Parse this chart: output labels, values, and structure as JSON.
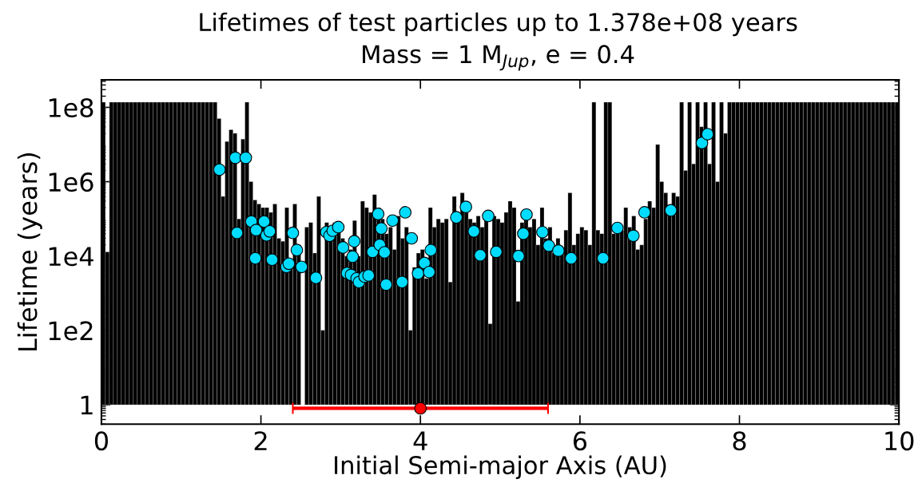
{
  "chart_data": {
    "type": "bar",
    "title": "Lifetimes of test particles up to 1.378e+08 years",
    "subtitle": "Mass = 1 M$_{Jup}$, e = 0.4",
    "xlabel": "Initial Semi-major Axis (AU)",
    "ylabel": "Lifetime (years)",
    "log": "y",
    "xlim": [
      0,
      10
    ],
    "xticks": [
      0,
      2,
      4,
      6,
      8,
      10
    ],
    "ylim": [
      0.3,
      550000000.0
    ],
    "yticks": [
      {
        "value": 1,
        "label": "1"
      },
      {
        "value": 100,
        "label": "1e2"
      },
      {
        "value": 10000,
        "label": "1e4"
      },
      {
        "value": 1000000,
        "label": "1e6"
      },
      {
        "value": 100000000,
        "label": "1e8"
      }
    ],
    "marker": "circle",
    "series": [
      {
        "color": "#000000",
        "base": [
          1,
          1,
          1,
          1,
          1,
          1,
          1,
          1,
          1,
          1,
          1,
          1,
          1,
          1,
          1,
          1,
          1,
          1,
          1,
          1,
          1,
          1,
          1,
          1,
          1,
          1,
          1,
          1,
          1,
          1,
          1,
          1,
          1,
          1,
          1,
          1,
          1,
          1,
          1,
          1,
          1,
          1,
          1,
          1,
          1,
          1,
          1,
          1,
          1,
          1,
          null,
          1,
          1,
          1,
          1,
          1,
          1,
          1,
          1,
          1,
          1,
          1,
          1,
          1,
          1,
          1,
          1,
          1,
          1,
          1,
          1,
          1,
          1,
          1,
          1,
          1,
          1,
          1,
          1,
          1,
          1,
          1,
          1,
          1,
          1,
          1,
          1,
          1,
          1,
          1,
          1,
          1,
          1,
          1,
          1,
          1,
          1,
          1,
          1,
          1,
          1,
          1,
          1,
          1,
          1,
          1,
          1,
          1,
          1,
          1,
          1,
          1,
          1,
          1,
          1,
          1,
          1,
          1,
          1,
          1,
          1,
          1,
          1,
          1,
          1,
          1,
          1,
          1,
          1,
          1,
          1,
          1,
          1,
          1,
          1,
          1,
          1,
          1,
          1,
          1,
          1,
          1,
          1,
          1,
          1,
          1,
          1,
          1,
          1,
          1,
          1,
          1,
          1,
          1,
          1,
          1,
          1,
          1,
          1,
          1,
          1,
          1,
          1,
          1,
          1,
          1,
          1,
          1,
          1,
          1,
          1,
          1,
          1,
          1,
          1,
          1,
          1,
          1,
          1,
          1,
          1,
          1,
          1,
          1,
          1,
          1,
          1,
          1,
          1,
          1,
          1,
          1,
          1,
          1,
          1,
          1,
          1,
          1,
          1,
          1
        ],
        "x": [
          0.025,
          0.075,
          0.125,
          0.175,
          0.225,
          0.275,
          0.325,
          0.375,
          0.425,
          0.475,
          0.525,
          0.575,
          0.625,
          0.675,
          0.725,
          0.775,
          0.825,
          0.875,
          0.925,
          0.975,
          1.025,
          1.075,
          1.125,
          1.175,
          1.225,
          1.275,
          1.325,
          1.375,
          1.425,
          1.475,
          1.525,
          1.575,
          1.625,
          1.675,
          1.725,
          1.775,
          1.825,
          1.875,
          1.925,
          1.975,
          2.025,
          2.075,
          2.125,
          2.175,
          2.225,
          2.275,
          2.325,
          2.375,
          2.425,
          2.475,
          2.525,
          2.575,
          2.625,
          2.675,
          2.725,
          2.775,
          2.825,
          2.875,
          2.925,
          2.975,
          3.025,
          3.075,
          3.125,
          3.175,
          3.225,
          3.275,
          3.325,
          3.375,
          3.425,
          3.475,
          3.525,
          3.575,
          3.625,
          3.675,
          3.725,
          3.775,
          3.825,
          3.875,
          3.925,
          3.975,
          4.025,
          4.075,
          4.125,
          4.175,
          4.225,
          4.275,
          4.325,
          4.375,
          4.425,
          4.475,
          4.525,
          4.575,
          4.625,
          4.675,
          4.725,
          4.775,
          4.825,
          4.875,
          4.925,
          4.975,
          5.025,
          5.075,
          5.125,
          5.175,
          5.225,
          5.275,
          5.325,
          5.375,
          5.425,
          5.475,
          5.525,
          5.575,
          5.625,
          5.675,
          5.725,
          5.775,
          5.825,
          5.875,
          5.925,
          5.975,
          6.025,
          6.075,
          6.125,
          6.175,
          6.225,
          6.275,
          6.325,
          6.375,
          6.425,
          6.475,
          6.525,
          6.575,
          6.625,
          6.675,
          6.725,
          6.775,
          6.825,
          6.875,
          6.925,
          6.975,
          7.025,
          7.075,
          7.125,
          7.175,
          7.225,
          7.275,
          7.325,
          7.375,
          7.425,
          7.475,
          7.525,
          7.575,
          7.625,
          7.675,
          7.725,
          7.775,
          7.825,
          7.875,
          7.925,
          7.975,
          8.025,
          8.075,
          8.125,
          8.175,
          8.225,
          8.275,
          8.325,
          8.375,
          8.425,
          8.475,
          8.525,
          8.575,
          8.625,
          8.675,
          8.725,
          8.775,
          8.825,
          8.875,
          8.925,
          8.975,
          9.025,
          9.075,
          9.125,
          9.175,
          9.225,
          9.275,
          9.325,
          9.375,
          9.425,
          9.475,
          9.525,
          9.575,
          9.625,
          9.675,
          9.725,
          9.775,
          9.825,
          9.875,
          9.925,
          9.975
        ],
        "values": [
          137800000.0,
          13000.0,
          137800000.0,
          137800000.0,
          137800000.0,
          137800000.0,
          137800000.0,
          137800000.0,
          137800000.0,
          137800000.0,
          137800000.0,
          137800000.0,
          137800000.0,
          137800000.0,
          137800000.0,
          137800000.0,
          137800000.0,
          137800000.0,
          137800000.0,
          137800000.0,
          137800000.0,
          137800000.0,
          137800000.0,
          137800000.0,
          137800000.0,
          137800000.0,
          137800000.0,
          137800000.0,
          137800000.0,
          50000000.0,
          400000.0,
          12000000.0,
          25000000.0,
          20000000.0,
          100000.0,
          14000000.0,
          137800000.0,
          1000000.0,
          320000.0,
          250000.0,
          200000.0,
          200000.0,
          150000.0,
          250000.0,
          30000.0,
          25000.0,
          200000.0,
          5000.0,
          250000.0,
          20000.0,
          null,
          60000.0,
          80000.0,
          12000.0,
          400000.0,
          100,
          80000.0,
          30000.0,
          80000.0,
          50000.0,
          30000.0,
          10000.0,
          15000.0,
          90000.0,
          10000.0,
          300000.0,
          200000.0,
          150000.0,
          450000.0,
          200000.0,
          100000.0,
          40000.0,
          60000.0,
          15000.0,
          120000.0,
          30000.0,
          60000.0,
          100,
          5000.0,
          12000.0,
          15000.0,
          2500.0,
          200000.0,
          60000.0,
          100000.0,
          80000.0,
          100000.0,
          2000.0,
          400000.0,
          100000.0,
          500000.0,
          150000.0,
          100000.0,
          80000.0,
          120000.0,
          60000.0,
          100000.0,
          150,
          120000.0,
          100000.0,
          80000.0,
          150000.0,
          300000.0,
          200000.0,
          600,
          80000.0,
          100000.0,
          60000.0,
          100000.0,
          20000.0,
          200000.0,
          30000.0,
          60000.0,
          12000.0,
          30000.0,
          15000.0,
          50000.0,
          500000.0,
          20000.0,
          40000.0,
          60000.0,
          50000.0,
          20000.0,
          137800000.0,
          50000.0,
          40000.0,
          137800000.0,
          137800000.0,
          40000.0,
          80000.0,
          50000.0,
          200000.0,
          60000.0,
          120000.0,
          15000.0,
          20000.0,
          100000.0,
          300000.0,
          200000.0,
          10000000.0,
          1000000.0,
          500000.0,
          150000.0,
          500000.0,
          400000.0,
          137800000.0,
          2000000.0,
          137800000.0,
          3000000.0,
          137800000.0,
          30000000.0,
          137800000.0,
          3000000.0,
          137800000.0,
          1000000.0,
          137800000.0,
          20000000.0,
          137800000.0,
          137800000.0,
          137800000.0,
          137800000.0,
          137800000.0,
          137800000.0,
          137800000.0,
          137800000.0,
          137800000.0,
          137800000.0,
          137800000.0,
          137800000.0,
          137800000.0,
          137800000.0,
          137800000.0,
          137800000.0,
          137800000.0,
          137800000.0,
          137800000.0,
          137800000.0,
          137800000.0,
          137800000.0,
          137800000.0,
          137800000.0,
          137800000.0,
          137800000.0,
          137800000.0,
          137800000.0,
          137800000.0,
          137800000.0,
          137800000.0,
          137800000.0,
          137800000.0,
          137800000.0,
          137800000.0,
          137800000.0,
          137800000.0,
          137800000.0,
          137800000.0,
          137800000.0,
          137800000.0,
          137800000.0,
          137800000.0
        ]
      },
      {
        "type": "scatter",
        "color": "#00dcff",
        "x": [
          1.48,
          1.68,
          1.7,
          1.81,
          1.88,
          1.93,
          1.94,
          2.04,
          2.07,
          2.11,
          2.14,
          2.32,
          2.35,
          2.4,
          2.45,
          2.51,
          2.69,
          2.82,
          2.86,
          2.9,
          2.97,
          3.03,
          3.08,
          3.13,
          3.15,
          3.17,
          3.2,
          3.23,
          3.3,
          3.35,
          3.4,
          3.47,
          3.49,
          3.51,
          3.55,
          3.57,
          3.65,
          3.77,
          3.81,
          3.89,
          3.97,
          4.05,
          4.11,
          4.13,
          4.45,
          4.57,
          4.67,
          4.75,
          4.85,
          4.95,
          5.23,
          5.29,
          5.33,
          5.53,
          5.61,
          5.73,
          5.89,
          6.29,
          6.47,
          6.67,
          6.81,
          7.14,
          7.53,
          7.6
        ],
        "values": [
          2100000.0,
          4400000.0,
          42000.0,
          4400000.0,
          85000.0,
          8700.0,
          50000.0,
          85000.0,
          36000.0,
          46000.0,
          8000.0,
          5100.0,
          6200.0,
          42000.0,
          14500.0,
          5100.0,
          2600.0,
          44000.0,
          35000.0,
          48000.0,
          60000.0,
          17000.0,
          3500.0,
          3100.0,
          9600.0,
          25000.0,
          2500.0,
          2000.0,
          2800.0,
          3000.0,
          13000.0,
          135000.0,
          20000.0,
          55000.0,
          12600.0,
          1700.0,
          90000.0,
          2000.0,
          150000.0,
          30000.0,
          3400.0,
          6500.0,
          3700.0,
          14500.0,
          110000.0,
          210000.0,
          46000.0,
          10500.0,
          120000.0,
          13000.0,
          10000.0,
          40000.0,
          130000.0,
          44000.0,
          19000.0,
          14000.0,
          8700.0,
          8700.0,
          57000.0,
          35000.0,
          150000.0,
          170000.0,
          11000000.0,
          19000000.0
        ]
      },
      {
        "type": "scatter",
        "color": "#ff0000",
        "x": [
          4
        ],
        "values": [
          0.8
        ],
        "xerrors": [
          [
            2.4,
            5.6
          ]
        ]
      }
    ]
  }
}
